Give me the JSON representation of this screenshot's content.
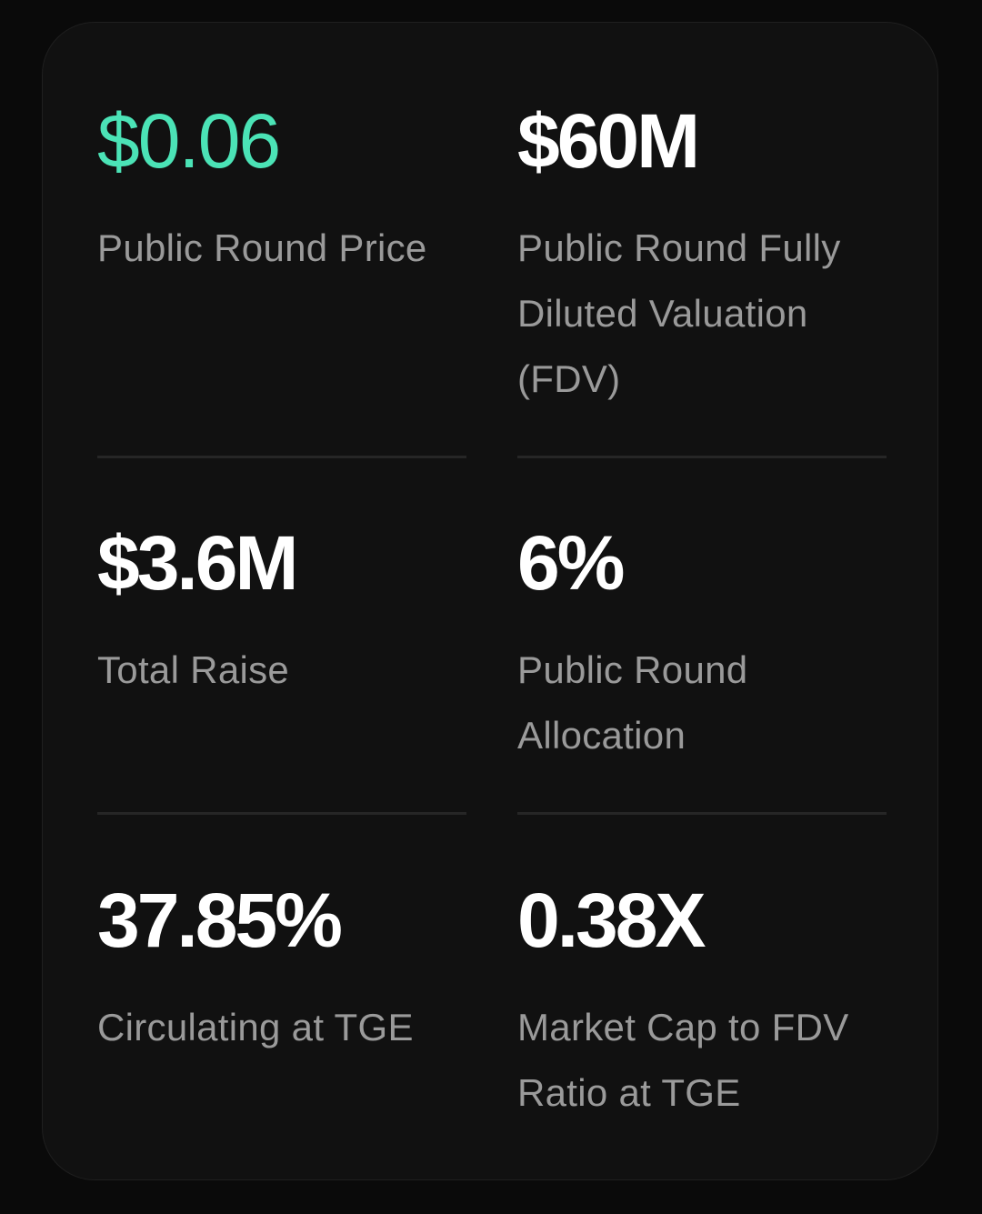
{
  "colors": {
    "background": "#0a0a0a",
    "card": "#111111",
    "accent": "#4be3b6",
    "value": "#ffffff",
    "label": "#9a9a9a",
    "divider": "#262626"
  },
  "stats": [
    {
      "value": "$0.06",
      "label": "Public Round Price"
    },
    {
      "value": "$60M",
      "label": "Public Round Fully Diluted Valuation (FDV)"
    },
    {
      "value": "$3.6M",
      "label": "Total Raise"
    },
    {
      "value": "6%",
      "label": "Public Round Allocation"
    },
    {
      "value": "37.85%",
      "label": "Circulating at TGE"
    },
    {
      "value": "0.38X",
      "label": "Market Cap to FDV Ratio at TGE"
    }
  ]
}
